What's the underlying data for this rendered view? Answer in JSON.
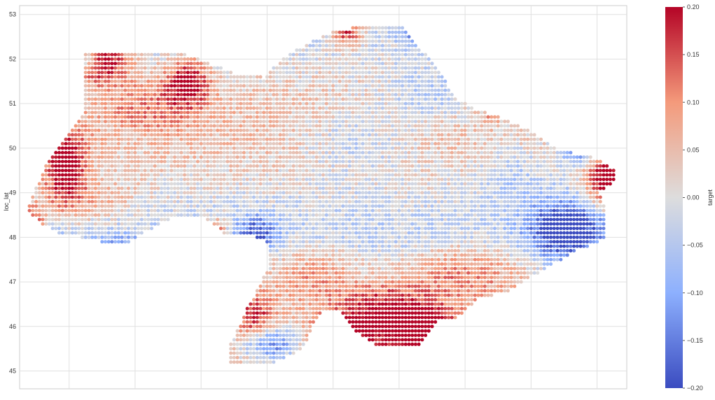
{
  "chart_data": {
    "type": "scatter",
    "title": "",
    "xlabel": "",
    "ylabel": "loc_lat",
    "colorbar_label": "target",
    "colormap": "coolwarm",
    "color_range": [
      -0.2,
      0.2
    ],
    "colorbar_ticks": [
      "0.20",
      "0.15",
      "0.10",
      "0.05",
      "0.00",
      "−0.05",
      "−0.10",
      "−0.15",
      "−0.20"
    ],
    "colorbar_tick_values": [
      0.2,
      0.15,
      0.1,
      0.05,
      0.0,
      -0.05,
      -0.1,
      -0.15,
      -0.2
    ],
    "y_ticks": [
      "53",
      "52",
      "51",
      "50",
      "49",
      "48",
      "47",
      "46",
      "45"
    ],
    "y_tick_values": [
      53,
      52,
      51,
      50,
      49,
      48,
      47,
      46,
      45
    ],
    "ylim": [
      44.6,
      53.2
    ],
    "xlim": [
      22.0,
      40.4
    ],
    "x_ticks_labeled": false,
    "grid": true,
    "grid_spacing": [
      0.1,
      0.1
    ],
    "colors": {
      "low": "#3b4cc0",
      "mid": "#dddddd",
      "high": "#b40426",
      "grid": "#e0e0e0",
      "frame": "#cccccc"
    },
    "outline": [
      [
        23.9,
        52.1
      ],
      [
        25.5,
        52.2
      ],
      [
        26.7,
        52.2
      ],
      [
        27.8,
        51.9
      ],
      [
        28.5,
        51.7
      ],
      [
        29.4,
        51.6
      ],
      [
        30.1,
        52.1
      ],
      [
        31.4,
        52.6
      ],
      [
        32.7,
        52.8
      ],
      [
        33.6,
        52.8
      ],
      [
        34.2,
        52.2
      ],
      [
        34.7,
        51.8
      ],
      [
        35.0,
        51.4
      ],
      [
        35.3,
        51.1
      ],
      [
        35.8,
        50.9
      ],
      [
        36.6,
        50.7
      ],
      [
        37.7,
        50.3
      ],
      [
        38.3,
        50.0
      ],
      [
        38.8,
        49.9
      ],
      [
        39.4,
        49.8
      ],
      [
        40.1,
        49.5
      ],
      [
        40.0,
        49.2
      ],
      [
        39.6,
        49.0
      ],
      [
        39.8,
        48.6
      ],
      [
        39.8,
        48.0
      ],
      [
        39.6,
        47.9
      ],
      [
        38.9,
        47.7
      ],
      [
        38.2,
        47.4
      ],
      [
        37.5,
        47.1
      ],
      [
        36.9,
        46.8
      ],
      [
        35.9,
        46.6
      ],
      [
        35.3,
        46.2
      ],
      [
        34.7,
        46.1
      ],
      [
        34.2,
        45.6
      ],
      [
        33.5,
        45.5
      ],
      [
        32.8,
        45.6
      ],
      [
        32.2,
        45.9
      ],
      [
        31.8,
        46.3
      ],
      [
        31.2,
        46.4
      ],
      [
        30.9,
        46.0
      ],
      [
        30.6,
        45.5
      ],
      [
        29.8,
        45.2
      ],
      [
        29.2,
        45.1
      ],
      [
        28.4,
        45.2
      ],
      [
        28.4,
        45.6
      ],
      [
        28.9,
        46.4
      ],
      [
        29.2,
        46.8
      ],
      [
        29.6,
        47.4
      ],
      [
        29.5,
        47.9
      ],
      [
        28.9,
        48.1
      ],
      [
        28.2,
        48.1
      ],
      [
        27.5,
        48.5
      ],
      [
        26.5,
        48.4
      ],
      [
        25.3,
        47.9
      ],
      [
        24.5,
        47.9
      ],
      [
        23.2,
        48.1
      ],
      [
        22.7,
        48.3
      ],
      [
        22.2,
        48.6
      ],
      [
        22.6,
        49.3
      ],
      [
        22.8,
        49.7
      ],
      [
        23.3,
        50.2
      ],
      [
        23.9,
        50.7
      ],
      [
        24.0,
        51.6
      ]
    ],
    "hot_spots": [
      [
        24.5,
        52.0,
        0.8,
        0.5,
        0.22
      ],
      [
        27.1,
        51.5,
        0.6,
        0.5,
        0.2
      ],
      [
        23.4,
        49.6,
        0.6,
        0.8,
        0.22
      ],
      [
        22.4,
        48.3,
        0.4,
        0.4,
        0.18
      ],
      [
        39.8,
        49.3,
        0.6,
        0.6,
        0.25
      ],
      [
        34.3,
        45.8,
        1.2,
        0.5,
        0.25
      ],
      [
        32.0,
        45.9,
        1.0,
        0.4,
        0.18
      ],
      [
        29.1,
        46.2,
        0.6,
        0.5,
        0.15
      ],
      [
        28.0,
        48.1,
        0.3,
        0.3,
        0.18
      ],
      [
        31.9,
        52.6,
        0.5,
        0.3,
        0.2
      ],
      [
        36.3,
        51.0,
        0.2,
        0.3,
        0.18
      ],
      [
        30.9,
        47.3,
        1.5,
        0.6,
        0.1
      ],
      [
        35.5,
        47.3,
        2.0,
        0.6,
        0.12
      ],
      [
        26.0,
        51.0,
        1.5,
        0.6,
        0.08
      ],
      [
        24.0,
        48.8,
        1.5,
        0.5,
        0.08
      ],
      [
        33.2,
        46.4,
        1.5,
        0.5,
        0.15
      ]
    ],
    "cold_spots": [
      [
        38.5,
        48.2,
        1.0,
        0.6,
        -0.22
      ],
      [
        39.0,
        49.9,
        0.6,
        0.3,
        -0.15
      ],
      [
        34.2,
        52.6,
        0.5,
        0.3,
        -0.18
      ],
      [
        29.6,
        45.6,
        0.8,
        0.4,
        -0.18
      ],
      [
        29.2,
        48.1,
        0.6,
        0.4,
        -0.15
      ],
      [
        25.0,
        47.7,
        0.8,
        0.3,
        -0.12
      ],
      [
        24.1,
        52.0,
        0.3,
        0.2,
        -0.15
      ],
      [
        34.5,
        51.2,
        1.5,
        0.6,
        -0.08
      ],
      [
        32.3,
        50.2,
        1.8,
        0.8,
        -0.07
      ],
      [
        37.0,
        49.5,
        1.2,
        0.8,
        -0.06
      ],
      [
        23.0,
        47.8,
        0.4,
        0.3,
        -0.12
      ]
    ]
  }
}
